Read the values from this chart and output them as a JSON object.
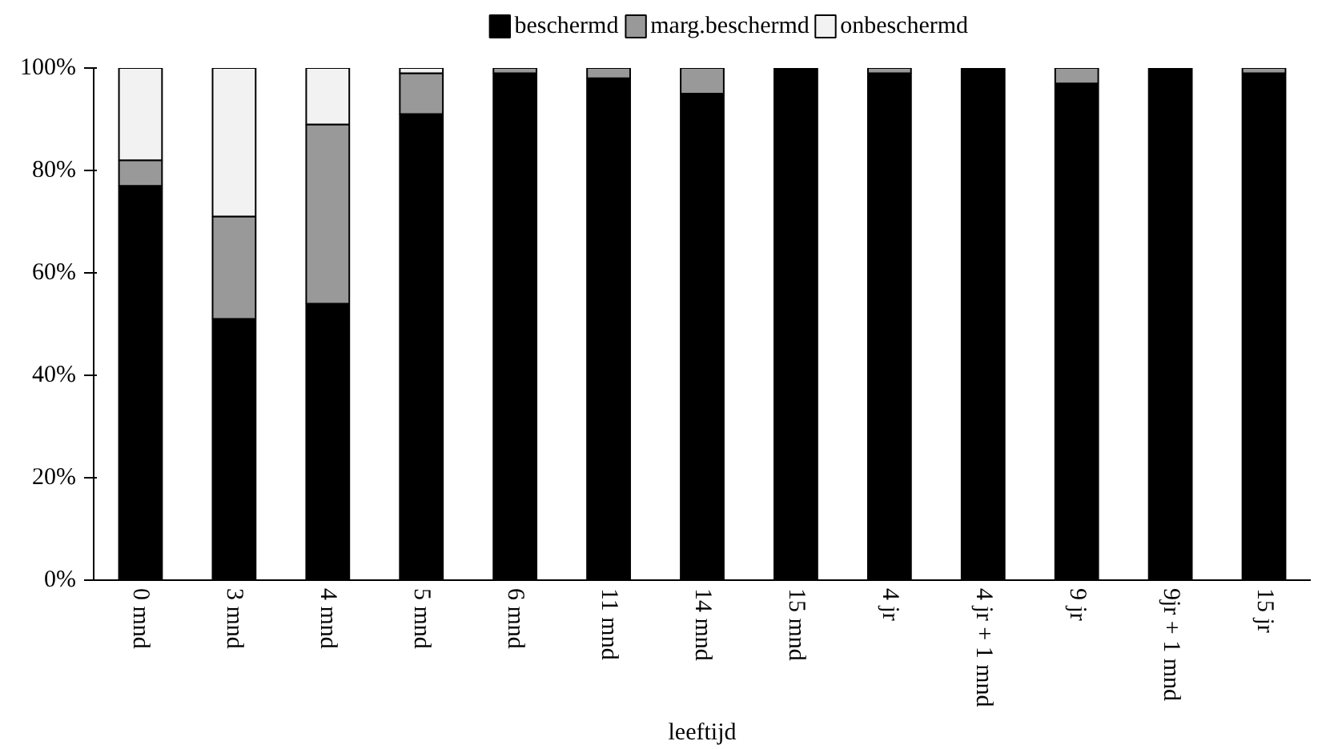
{
  "chart_data": {
    "type": "bar",
    "stacked": true,
    "xlabel": "leeftijd",
    "categories": [
      "0 mnd",
      "3 mnd",
      "4 mnd",
      "5 mnd",
      "6 mnd",
      "11 mnd",
      "14 mnd",
      "15 mnd",
      "4 jr",
      "4 jr + 1 mnd",
      "9 jr",
      "9jr + 1 mnd",
      "15 jr"
    ],
    "series": [
      {
        "name": "beschermd",
        "color": "#000000",
        "values": [
          77,
          51,
          54,
          91,
          99,
          98,
          95,
          100,
          99,
          100,
          97,
          100,
          99
        ]
      },
      {
        "name": "marg.beschermd",
        "color": "#999999",
        "values": [
          5,
          20,
          35,
          8,
          1,
          2,
          5,
          0,
          1,
          0,
          3,
          0,
          1
        ]
      },
      {
        "name": "onbeschermd",
        "color": "#f2f2f2",
        "values": [
          18,
          29,
          11,
          1,
          0,
          0,
          0,
          0,
          0,
          0,
          0,
          0,
          0
        ]
      }
    ],
    "ylim": [
      0,
      100
    ],
    "yticks": [
      {
        "value": 0,
        "label": "0%"
      },
      {
        "value": 20,
        "label": "20%"
      },
      {
        "value": 40,
        "label": "40%"
      },
      {
        "value": 60,
        "label": "60%"
      },
      {
        "value": 80,
        "label": "80%"
      },
      {
        "value": 100,
        "label": "100%"
      }
    ],
    "grid": false,
    "legend": "top"
  }
}
